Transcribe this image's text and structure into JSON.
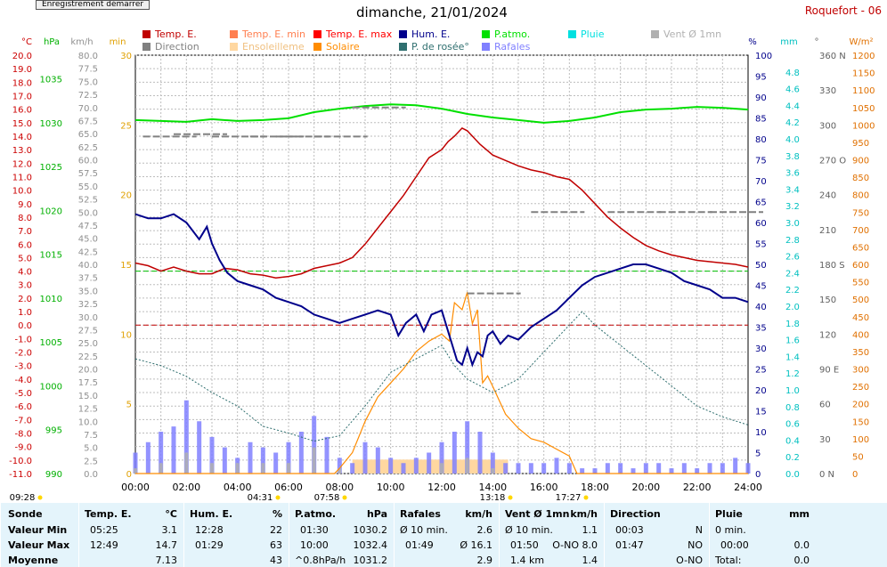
{
  "record_button": "Enregistrement démarrer",
  "title": "dimanche, 21/01/2024",
  "station": "Roquefort - 06",
  "legend": [
    {
      "label": "Temp. E.",
      "color": "#c00000"
    },
    {
      "label": "Temp. E. min",
      "color": "#ff7f50"
    },
    {
      "label": "Temp. E. max",
      "color": "#ff0000"
    },
    {
      "label": "Hum. E.",
      "color": "#00008b"
    },
    {
      "label": "P.atmo.",
      "color": "#00e000"
    },
    {
      "label": "Pluie",
      "color": "#00e0e0"
    },
    {
      "label": "Vent Ø 1mn",
      "color": "#b0b0b0"
    },
    {
      "label": "Direction",
      "color": "#808080"
    },
    {
      "label": "Ensoleilleme",
      "color": "#ffd7a0"
    },
    {
      "label": "Solaire",
      "color": "#ff8c00"
    },
    {
      "label": "P. de rosée°",
      "color": "#2f6f6f"
    },
    {
      "label": "Rafales",
      "color": "#8080ff"
    }
  ],
  "chart_data": {
    "type": "line",
    "xlabel": "",
    "x_ticks": [
      "00:00",
      "02:00",
      "04:00",
      "06:00",
      "08:00",
      "10:00",
      "12:00",
      "14:00",
      "16:00",
      "18:00",
      "20:00",
      "22:00",
      "24:00"
    ],
    "axes": {
      "temp_c": {
        "unit": "°C",
        "range": [
          -11,
          20
        ],
        "ticks": [
          "20.0",
          "19.0",
          "18.0",
          "17.0",
          "16.0",
          "15.0",
          "14.0",
          "13.0",
          "12.0",
          "11.0",
          "10.0",
          "9.0",
          "8.0",
          "7.0",
          "6.0",
          "5.0",
          "4.0",
          "3.0",
          "2.0",
          "1.0",
          "0.0",
          "-1.0",
          "-2.0",
          "-3.0",
          "-4.0",
          "-5.0",
          "-6.0",
          "-7.0",
          "-8.0",
          "-9.0",
          "-10.0",
          "-11.0"
        ]
      },
      "pressure_hpa": {
        "unit": "hPa",
        "range": [
          990,
          1037.7
        ],
        "ticks": [
          "1035",
          "1030",
          "1025",
          "1020",
          "1015",
          "1010",
          "1005",
          "1000",
          "995",
          "990"
        ]
      },
      "wind_kmh": {
        "unit": "km/h",
        "range": [
          0,
          80
        ],
        "ticks": [
          "80.0",
          "77.5",
          "75.0",
          "72.5",
          "70.0",
          "67.5",
          "65.0",
          "62.5",
          "60.0",
          "57.5",
          "55.0",
          "52.5",
          "50.0",
          "47.5",
          "45.0",
          "42.5",
          "40.0",
          "37.5",
          "35.0",
          "32.5",
          "30.0",
          "27.5",
          "25.0",
          "22.5",
          "20.0",
          "17.5",
          "15.0",
          "12.5",
          "10.0",
          "7.5",
          "5.0",
          "2.5",
          "0.0"
        ]
      },
      "sun_min": {
        "unit": "min",
        "range": [
          0,
          30
        ],
        "ticks": [
          "30",
          "25",
          "20",
          "15",
          "10",
          "5",
          "0"
        ]
      },
      "humidity_pct": {
        "unit": "%",
        "range": [
          0,
          100
        ],
        "ticks": [
          "100",
          "95",
          "90",
          "85",
          "80",
          "75",
          "70",
          "65",
          "60",
          "55",
          "50",
          "45",
          "40",
          "35",
          "30",
          "25",
          "20",
          "15",
          "10",
          "5",
          "0"
        ]
      },
      "rain_mm": {
        "unit": "mm",
        "range": [
          0,
          5
        ],
        "ticks": [
          "4.8",
          "4.6",
          "4.4",
          "4.2",
          "4.0",
          "3.8",
          "3.6",
          "3.4",
          "3.2",
          "3.0",
          "2.8",
          "2.6",
          "2.4",
          "2.2",
          "2.0",
          "1.8",
          "1.6",
          "1.4",
          "1.2",
          "1.0",
          "0.8",
          "0.6",
          "0.4",
          "0.2",
          "0.0"
        ]
      },
      "direction_deg": {
        "unit": "°",
        "range": [
          0,
          360
        ],
        "ticks": [
          "360 N",
          "330",
          "300",
          "270 O",
          "240",
          "210",
          "180 S",
          "150",
          "120",
          "90 E",
          "60",
          "30",
          "0 N"
        ]
      },
      "solar_wm2": {
        "unit": "W/m²",
        "range": [
          0,
          1200
        ],
        "ticks": [
          "1200",
          "1150",
          "1100",
          "1050",
          "1000",
          "950",
          "900",
          "850",
          "800",
          "750",
          "700",
          "650",
          "600",
          "550",
          "500",
          "450",
          "400",
          "350",
          "300",
          "250",
          "200",
          "150",
          "100",
          "50",
          "0"
        ]
      }
    },
    "series": [
      {
        "name": "Temp. E.",
        "axis": "temp_c",
        "x": [
          0,
          0.5,
          1,
          1.5,
          2,
          2.5,
          3,
          3.5,
          4,
          4.5,
          5,
          5.5,
          6,
          6.5,
          7,
          7.5,
          8,
          8.5,
          9,
          9.5,
          10,
          10.5,
          11,
          11.5,
          12,
          12.25,
          12.5,
          12.8,
          13,
          13.5,
          14,
          14.5,
          15,
          15.5,
          16,
          16.5,
          17,
          17.5,
          18,
          18.5,
          19,
          19.5,
          20,
          20.5,
          21,
          21.5,
          22,
          22.5,
          23,
          23.5,
          24
        ],
        "values": [
          4.6,
          4.4,
          4.0,
          4.3,
          4.0,
          3.8,
          3.8,
          4.2,
          4.1,
          3.8,
          3.7,
          3.5,
          3.6,
          3.8,
          4.2,
          4.4,
          4.6,
          5.0,
          6.0,
          7.2,
          8.4,
          9.6,
          11.0,
          12.4,
          13.0,
          13.6,
          14.0,
          14.6,
          14.4,
          13.4,
          12.6,
          12.2,
          11.8,
          11.5,
          11.3,
          11.0,
          10.8,
          10.0,
          9.0,
          8.0,
          7.2,
          6.5,
          5.9,
          5.5,
          5.2,
          5.0,
          4.8,
          4.7,
          4.6,
          4.5,
          4.3
        ]
      },
      {
        "name": "Hum. E.",
        "axis": "humidity_pct",
        "x": [
          0,
          0.5,
          1,
          1.5,
          2,
          2.5,
          2.8,
          3,
          3.3,
          3.6,
          4,
          4.5,
          5,
          5.5,
          6,
          6.5,
          7,
          7.5,
          8,
          8.5,
          9,
          9.5,
          10,
          10.3,
          10.6,
          11,
          11.3,
          11.6,
          12,
          12.3,
          12.6,
          12.8,
          13,
          13.2,
          13.4,
          13.6,
          13.8,
          14,
          14.3,
          14.6,
          15,
          15.5,
          16,
          16.5,
          17,
          17.5,
          18,
          18.5,
          19,
          19.5,
          20,
          20.5,
          21,
          21.5,
          22,
          22.5,
          23,
          23.5,
          24
        ],
        "values": [
          62,
          61,
          61,
          62,
          60,
          56,
          59,
          55,
          51,
          48,
          46,
          45,
          44,
          42,
          41,
          40,
          38,
          37,
          36,
          37,
          38,
          39,
          38,
          33,
          36,
          38,
          34,
          38,
          39,
          33,
          27,
          26,
          30,
          26,
          29,
          28,
          33,
          34,
          31,
          33,
          32,
          35,
          37,
          39,
          42,
          45,
          47,
          48,
          49,
          50,
          50,
          49,
          48,
          46,
          45,
          44,
          42,
          42,
          41
        ]
      },
      {
        "name": "P.atmo.",
        "axis": "pressure_hpa",
        "x": [
          0,
          1,
          2,
          3,
          4,
          5,
          6,
          7,
          8,
          9,
          10,
          11,
          12,
          13,
          14,
          15,
          16,
          17,
          18,
          19,
          20,
          21,
          22,
          23,
          24
        ],
        "values": [
          1030.3,
          1030.2,
          1030.1,
          1030.4,
          1030.2,
          1030.3,
          1030.5,
          1031.2,
          1031.6,
          1031.9,
          1032.1,
          1032.0,
          1031.6,
          1031.0,
          1030.6,
          1030.3,
          1030.0,
          1030.2,
          1030.6,
          1031.2,
          1031.5,
          1031.6,
          1031.8,
          1031.7,
          1031.5
        ]
      },
      {
        "name": "P. de rosée°",
        "axis": "temp_c",
        "x": [
          0,
          1,
          2,
          3,
          4,
          5,
          6,
          7,
          8,
          9,
          10,
          11,
          12,
          12.5,
          13,
          14,
          15,
          16,
          17,
          17.5,
          18,
          19,
          20,
          21,
          22,
          23,
          24
        ],
        "values": [
          -2.5,
          -3.0,
          -3.8,
          -5.0,
          -6.0,
          -7.5,
          -8.0,
          -8.6,
          -8.2,
          -6.0,
          -3.5,
          -2.5,
          -1.5,
          -3.0,
          -4.0,
          -5.0,
          -4.0,
          -2.0,
          0.0,
          1.0,
          0.0,
          -1.5,
          -3.0,
          -4.5,
          -6.0,
          -6.8,
          -7.4
        ]
      },
      {
        "name": "Solaire",
        "axis": "solar_wm2",
        "x": [
          0,
          7.8,
          8,
          8.5,
          9,
          9.5,
          10,
          10.5,
          11,
          11.5,
          12,
          12.3,
          12.5,
          12.8,
          13,
          13.2,
          13.4,
          13.6,
          13.8,
          14,
          14.5,
          15,
          15.5,
          16,
          16.5,
          17,
          17.3,
          24
        ],
        "values": [
          0,
          0,
          15,
          60,
          150,
          220,
          260,
          300,
          350,
          380,
          400,
          380,
          490,
          470,
          520,
          430,
          470,
          260,
          280,
          250,
          170,
          130,
          100,
          90,
          70,
          50,
          0,
          0
        ]
      },
      {
        "name": "Rafales",
        "axis": "wind_kmh",
        "x": [
          0,
          0.5,
          1,
          1.5,
          2,
          2.5,
          3,
          3.5,
          4,
          4.5,
          5,
          5.5,
          6,
          6.5,
          7,
          7.5,
          8,
          8.5,
          9,
          9.5,
          10,
          10.5,
          11,
          11.5,
          12,
          12.5,
          13,
          13.5,
          14,
          14.5,
          15,
          15.5,
          16,
          16.5,
          17,
          17.5,
          18,
          18.5,
          19,
          19.5,
          20,
          20.5,
          21,
          21.5,
          22,
          22.5,
          23,
          23.5,
          24
        ],
        "values": [
          4,
          6,
          8,
          9,
          14,
          10,
          7,
          5,
          3,
          6,
          5,
          4,
          6,
          8,
          11,
          7,
          3,
          2,
          6,
          5,
          3,
          2,
          3,
          4,
          6,
          8,
          10,
          8,
          4,
          2,
          2,
          2,
          2,
          3,
          2,
          1,
          1,
          2,
          2,
          1,
          2,
          2,
          1,
          2,
          1,
          2,
          2,
          3,
          2
        ]
      },
      {
        "name": "Vent Ø 1mn",
        "axis": "wind_kmh",
        "x": [
          0,
          1,
          2,
          3,
          4,
          5,
          6,
          7,
          8,
          9,
          10,
          11,
          12,
          13,
          14,
          15,
          16,
          17,
          18,
          19,
          20,
          21,
          22,
          23,
          24
        ],
        "values": [
          1,
          2,
          4,
          2,
          2,
          2,
          2,
          5,
          1,
          0,
          0,
          0,
          2,
          3,
          1,
          0,
          0,
          0,
          0,
          0,
          0,
          0,
          0,
          0,
          0
        ]
      },
      {
        "name": "Direction",
        "axis": "direction_deg",
        "x": [
          0.3,
          1.5,
          3.0,
          4.5,
          5.5,
          7.0,
          8.5,
          13.0,
          15.5,
          18.5,
          20.5,
          22.5
        ],
        "values": [
          290,
          292,
          290,
          290,
          290,
          290,
          315,
          155,
          225,
          225,
          225,
          225
        ]
      },
      {
        "name": "Ensoleilleme",
        "axis": "sun_min",
        "x": [
          8.5,
          14.6
        ],
        "values": [
          1,
          1
        ]
      }
    ],
    "reference_lines": [
      {
        "axis": "temp_c",
        "value": 0,
        "color": "#c00000"
      },
      {
        "axis": "temp_c",
        "value": 4,
        "color": "#00c000"
      }
    ],
    "markers": [
      {
        "label": "09:28",
        "color": "#ffd700"
      },
      {
        "label": "04:31",
        "color": "#ffd700"
      },
      {
        "label": "07:58",
        "color": "#ffd700"
      },
      {
        "label": "13:18",
        "color": "#ffd700"
      },
      {
        "label": "17:27",
        "color": "#ffd700"
      }
    ]
  },
  "table": {
    "sonde": {
      "header": "Sonde",
      "rows": [
        "Valeur Min",
        "Valeur Max",
        "Moyenne"
      ]
    },
    "temp": {
      "header": "Temp. E.",
      "unit": "°C",
      "rows": [
        [
          "05:25",
          "3.1"
        ],
        [
          "12:49",
          "14.7"
        ],
        [
          "",
          "7.13"
        ]
      ]
    },
    "hum": {
      "header": "Hum. E.",
      "unit": "%",
      "rows": [
        [
          "12:28",
          "22"
        ],
        [
          "01:29",
          "63"
        ],
        [
          "",
          "43"
        ]
      ]
    },
    "patmo": {
      "header": "P.atmo.",
      "unit": "hPa",
      "rows": [
        [
          "01:30",
          "1030.2"
        ],
        [
          "10:00",
          "1032.4"
        ],
        [
          "^0.8hPa/h",
          "1031.2"
        ]
      ]
    },
    "rafales": {
      "header": "Rafales",
      "unit": "km/h",
      "rows": [
        [
          "Ø 10 min.",
          "2.6"
        ],
        [
          "01:49",
          "Ø 16.1"
        ],
        [
          "",
          "2.9"
        ]
      ]
    },
    "vent": {
      "header": "Vent Ø 1mn",
      "unit": "km/h",
      "rows": [
        [
          "Ø 10 min.",
          "1.1"
        ],
        [
          "01:50",
          "O-NO 8.0"
        ],
        [
          "1.4 km",
          "1.4"
        ]
      ]
    },
    "direction": {
      "header": "Direction",
      "rows": [
        [
          "00:03",
          "N"
        ],
        [
          "01:47",
          "NO"
        ],
        [
          "",
          "O-NO"
        ]
      ]
    },
    "pluie": {
      "header": "Pluie",
      "unit": "mm",
      "rows": [
        [
          "0 min.",
          ""
        ],
        [
          "00:00",
          "0.0"
        ],
        [
          "Total:",
          "0.0"
        ]
      ]
    }
  }
}
